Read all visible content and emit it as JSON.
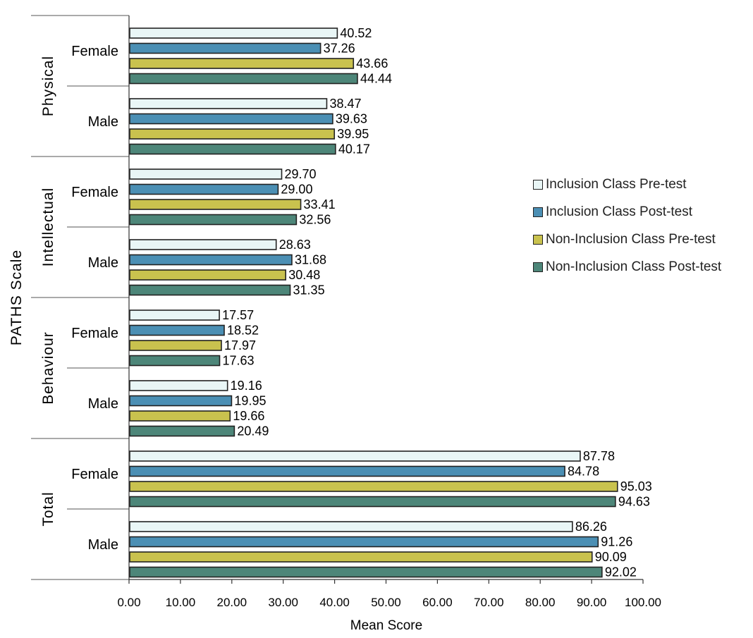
{
  "chart_data": {
    "type": "bar",
    "orientation": "horizontal",
    "xlabel": "Mean Score",
    "ylabel": "PATHS Scale",
    "xlim": [
      0,
      100
    ],
    "xticks": [
      "0.00",
      "10.00",
      "20.00",
      "30.00",
      "40.00",
      "50.00",
      "60.00",
      "70.00",
      "80.00",
      "90.00",
      "100.00"
    ],
    "legend_position": "right",
    "series": [
      {
        "name": "Inclusion Class Pre-test",
        "color": "#e9f6f6"
      },
      {
        "name": "Inclusion Class Post-test",
        "color": "#4b8fb4"
      },
      {
        "name": "Non-Inclusion Class Pre-test",
        "color": "#c9c24e"
      },
      {
        "name": "Non-Inclusion Class Post-test",
        "color": "#4d8679"
      }
    ],
    "groups": [
      {
        "label": "Physical",
        "subgroups": [
          {
            "label": "Female",
            "values": [
              40.52,
              37.26,
              43.66,
              44.44
            ],
            "labels": [
              "40.52",
              "37.26",
              "43.66",
              "44.44"
            ]
          },
          {
            "label": "Male",
            "values": [
              38.47,
              39.63,
              39.95,
              40.17
            ],
            "labels": [
              "38.47",
              "39.63",
              "39.95",
              "40.17"
            ]
          }
        ]
      },
      {
        "label": "Intellectual",
        "subgroups": [
          {
            "label": "Female",
            "values": [
              29.7,
              29.0,
              33.41,
              32.56
            ],
            "labels": [
              "29.70",
              "29.00",
              "33.41",
              "32.56"
            ]
          },
          {
            "label": "Male",
            "values": [
              28.63,
              31.68,
              30.48,
              31.35
            ],
            "labels": [
              "28.63",
              "31.68",
              "30.48",
              "31.35"
            ]
          }
        ]
      },
      {
        "label": "Behaviour",
        "subgroups": [
          {
            "label": "Female",
            "values": [
              17.57,
              18.52,
              17.97,
              17.63
            ],
            "labels": [
              "17.57",
              "18.52",
              "17.97",
              "17.63"
            ]
          },
          {
            "label": "Male",
            "values": [
              19.16,
              19.95,
              19.66,
              20.49
            ],
            "labels": [
              "19.16",
              "19.95",
              "19.66",
              "20.49"
            ]
          }
        ]
      },
      {
        "label": "Total",
        "subgroups": [
          {
            "label": "Female",
            "values": [
              87.78,
              84.78,
              95.03,
              94.63
            ],
            "labels": [
              "87.78",
              "84.78",
              "95.03",
              "94.63"
            ]
          },
          {
            "label": "Male",
            "values": [
              86.26,
              91.26,
              90.09,
              92.02
            ],
            "labels": [
              "86.26",
              "91.26",
              "90.09",
              "92.02"
            ]
          }
        ]
      }
    ]
  }
}
